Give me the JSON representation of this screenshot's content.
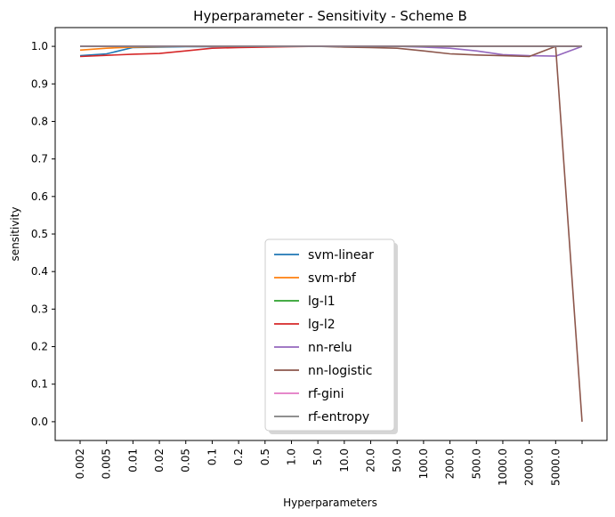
{
  "chart_data": {
    "type": "line",
    "title": "Hyperparameter - Sensitivity - Scheme B",
    "xlabel": "Hyperparameters",
    "ylabel": "sensitivity",
    "categories": [
      "0.002",
      "0.005",
      "0.01",
      "0.02",
      "0.05",
      "0.1",
      "0.2",
      "0.5",
      "1.0",
      "5.0",
      "10.0",
      "20.0",
      "50.0",
      "100.0",
      "200.0",
      "500.0",
      "1000.0",
      "2000.0",
      "5000.0",
      ""
    ],
    "yticks": [
      "0.0",
      "0.1",
      "0.2",
      "0.3",
      "0.4",
      "0.5",
      "0.6",
      "0.7",
      "0.8",
      "0.9",
      "1.0"
    ],
    "ylim": [
      -0.05,
      1.05
    ],
    "grid": false,
    "legend_position": "lower-center",
    "series": [
      {
        "name": "svm-linear",
        "color": "#1f77b4",
        "values": [
          0.975,
          0.98,
          0.997,
          0.998,
          0.999,
          0.999,
          1.0,
          1.0,
          1.0,
          1.0,
          1.0,
          1.0,
          1.0,
          1.0,
          1.0,
          1.0,
          1.0,
          1.0,
          1.0,
          1.0
        ]
      },
      {
        "name": "svm-rbf",
        "color": "#ff7f0e",
        "values": [
          0.99,
          0.995,
          0.998,
          0.999,
          1.0,
          1.0,
          1.0,
          1.0,
          1.0,
          1.0,
          1.0,
          1.0,
          1.0,
          1.0,
          1.0,
          1.0,
          1.0,
          1.0,
          1.0,
          1.0
        ]
      },
      {
        "name": "lg-l1",
        "color": "#2ca02c",
        "values": [
          1.0,
          1.0,
          1.0,
          1.0,
          1.0,
          1.0,
          1.0,
          1.0,
          1.0,
          1.0,
          1.0,
          1.0,
          1.0,
          1.0,
          1.0,
          1.0,
          1.0,
          1.0,
          1.0,
          1.0
        ]
      },
      {
        "name": "lg-l2",
        "color": "#d62728",
        "values": [
          0.973,
          0.976,
          0.979,
          0.981,
          0.988,
          0.995,
          0.997,
          0.998,
          0.999,
          1.0,
          1.0,
          1.0,
          1.0,
          1.0,
          1.0,
          1.0,
          1.0,
          1.0,
          1.0,
          1.0
        ]
      },
      {
        "name": "nn-relu",
        "color": "#9467bd",
        "values": [
          1.0,
          1.0,
          1.0,
          1.0,
          1.0,
          1.0,
          1.0,
          1.0,
          1.0,
          1.0,
          1.0,
          1.0,
          1.0,
          0.998,
          0.995,
          0.988,
          0.978,
          0.975,
          0.974,
          1.0
        ]
      },
      {
        "name": "nn-logistic",
        "color": "#8c564b",
        "values": [
          1.0,
          1.0,
          1.0,
          1.0,
          1.0,
          1.0,
          1.0,
          1.0,
          1.0,
          1.0,
          0.998,
          0.997,
          0.995,
          0.988,
          0.98,
          0.977,
          0.975,
          0.973,
          1.0,
          0.0
        ]
      },
      {
        "name": "rf-gini",
        "color": "#e377c2",
        "values": [
          1.0,
          1.0,
          1.0,
          1.0,
          1.0,
          1.0,
          1.0,
          1.0,
          1.0,
          1.0,
          1.0,
          1.0,
          1.0,
          1.0,
          1.0,
          1.0,
          1.0,
          1.0,
          1.0,
          1.0
        ]
      },
      {
        "name": "rf-entropy",
        "color": "#7f7f7f",
        "values": [
          1.0,
          1.0,
          1.0,
          1.0,
          1.0,
          1.0,
          1.0,
          1.0,
          1.0,
          1.0,
          1.0,
          1.0,
          1.0,
          1.0,
          1.0,
          1.0,
          1.0,
          1.0,
          1.0,
          1.0
        ]
      }
    ]
  }
}
